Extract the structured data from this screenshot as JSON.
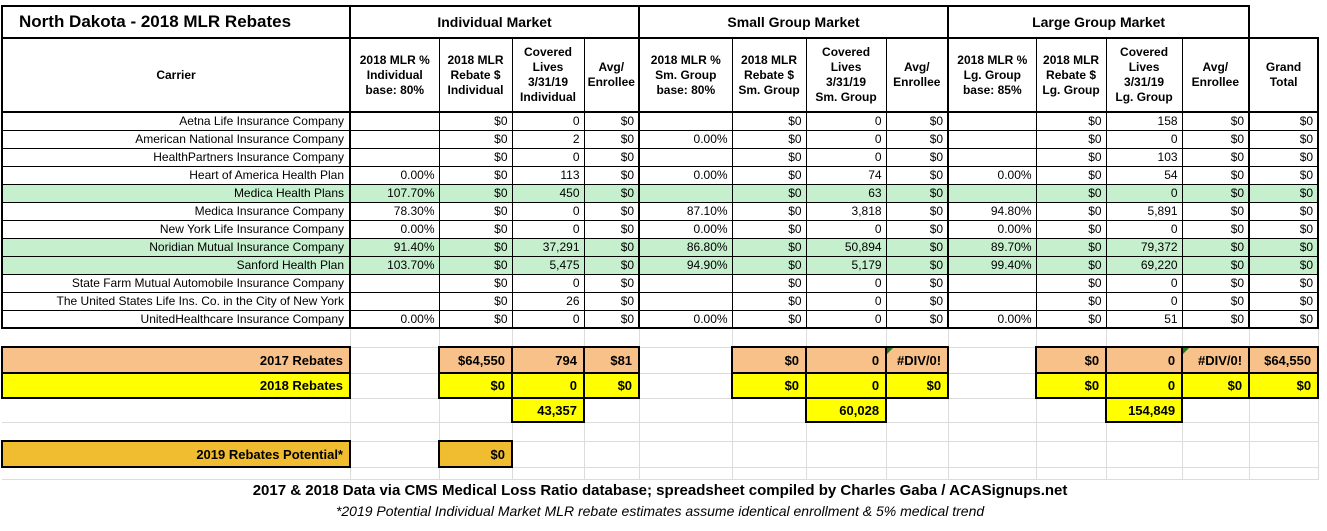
{
  "title": "North Dakota - 2018 MLR Rebates",
  "market_headers": [
    "Individual Market",
    "Small Group Market",
    "Large Group Market"
  ],
  "columns": [
    "Carrier",
    "2018 MLR %\nIndividual\nbase: 80%",
    "2018 MLR\nRebate $\nIndividual",
    "Covered\nLives\n3/31/19\nIndividual",
    "Avg/\nEnrollee",
    "2018 MLR %\nSm. Group\nbase: 80%",
    "2018 MLR\nRebate $\nSm. Group",
    "Covered\nLives\n3/31/19\nSm. Group",
    "Avg/\nEnrollee",
    "2018 MLR %\nLg. Group\nbase: 85%",
    "2018 MLR\nRebate $\nLg. Group",
    "Covered\nLives\n3/31/19\nLg. Group",
    "Avg/\nEnrollee",
    "Grand\nTotal"
  ],
  "rows": [
    {
      "carrier": "Aetna Life Insurance Company",
      "highlighted": false,
      "values": [
        "",
        "$0",
        "0",
        "$0",
        "",
        "$0",
        "0",
        "$0",
        "",
        "$0",
        "158",
        "$0",
        "$0"
      ]
    },
    {
      "carrier": "American National Insurance Company",
      "highlighted": false,
      "values": [
        "",
        "$0",
        "2",
        "$0",
        "0.00%",
        "$0",
        "0",
        "$0",
        "",
        "$0",
        "0",
        "$0",
        "$0"
      ]
    },
    {
      "carrier": "HealthPartners Insurance Company",
      "highlighted": false,
      "values": [
        "",
        "$0",
        "0",
        "$0",
        "",
        "$0",
        "0",
        "$0",
        "",
        "$0",
        "103",
        "$0",
        "$0"
      ]
    },
    {
      "carrier": "Heart of America Health Plan",
      "highlighted": false,
      "values": [
        "0.00%",
        "$0",
        "113",
        "$0",
        "0.00%",
        "$0",
        "74",
        "$0",
        "0.00%",
        "$0",
        "54",
        "$0",
        "$0"
      ]
    },
    {
      "carrier": "Medica Health Plans",
      "highlighted": true,
      "values": [
        "107.70%",
        "$0",
        "450",
        "$0",
        "",
        "$0",
        "63",
        "$0",
        "",
        "$0",
        "0",
        "$0",
        "$0"
      ]
    },
    {
      "carrier": "Medica Insurance Company",
      "highlighted": false,
      "values": [
        "78.30%",
        "$0",
        "0",
        "$0",
        "87.10%",
        "$0",
        "3,818",
        "$0",
        "94.80%",
        "$0",
        "5,891",
        "$0",
        "$0"
      ]
    },
    {
      "carrier": "New York Life Insurance Company",
      "highlighted": false,
      "values": [
        "0.00%",
        "$0",
        "0",
        "$0",
        "0.00%",
        "$0",
        "0",
        "$0",
        "0.00%",
        "$0",
        "0",
        "$0",
        "$0"
      ]
    },
    {
      "carrier": "Noridian Mutual Insurance Company",
      "highlighted": true,
      "values": [
        "91.40%",
        "$0",
        "37,291",
        "$0",
        "86.80%",
        "$0",
        "50,894",
        "$0",
        "89.70%",
        "$0",
        "79,372",
        "$0",
        "$0"
      ]
    },
    {
      "carrier": "Sanford Health Plan",
      "highlighted": true,
      "values": [
        "103.70%",
        "$0",
        "5,475",
        "$0",
        "94.90%",
        "$0",
        "5,179",
        "$0",
        "99.40%",
        "$0",
        "69,220",
        "$0",
        "$0"
      ]
    },
    {
      "carrier": "State Farm Mutual Automobile Insurance Company",
      "highlighted": false,
      "values": [
        "",
        "$0",
        "0",
        "$0",
        "",
        "$0",
        "0",
        "$0",
        "",
        "$0",
        "0",
        "$0",
        "$0"
      ]
    },
    {
      "carrier": "The United States Life Ins. Co. in the City of New York",
      "highlighted": false,
      "values": [
        "",
        "$0",
        "26",
        "$0",
        "",
        "$0",
        "0",
        "$0",
        "",
        "$0",
        "0",
        "$0",
        "$0"
      ]
    },
    {
      "carrier": "UnitedHealthcare Insurance Company",
      "highlighted": false,
      "values": [
        "0.00%",
        "$0",
        "0",
        "$0",
        "0.00%",
        "$0",
        "0",
        "$0",
        "0.00%",
        "$0",
        "51",
        "$0",
        "$0"
      ]
    }
  ],
  "summary": {
    "r2017": {
      "label": "2017 Rebates",
      "values": [
        "",
        "$64,550",
        "794",
        "$81",
        "",
        "$0",
        "0",
        "#DIV/0!",
        "",
        "$0",
        "0",
        "#DIV/0!",
        "$64,550"
      ],
      "error_cols": [
        7,
        11
      ]
    },
    "r2018": {
      "label": "2018 Rebates",
      "values": [
        "",
        "$0",
        "0",
        "$0",
        "",
        "$0",
        "0",
        "$0",
        "",
        "$0",
        "0",
        "$0",
        "$0"
      ],
      "error_cols": []
    },
    "lives_total": {
      "label": "",
      "values": [
        "",
        "",
        "43,357",
        "",
        "",
        "",
        "60,028",
        "",
        "",
        "",
        "154,849",
        "",
        ""
      ],
      "error_cols": []
    },
    "r2019": {
      "label": "2019 Rebates Potential*",
      "values": [
        "",
        "$0",
        "",
        "",
        "",
        "",
        "",
        "",
        "",
        "",
        "",
        "",
        ""
      ],
      "error_cols": []
    }
  },
  "footer": {
    "line1": "2017 & 2018 Data via CMS Medical Loss Ratio database; spreadsheet compiled by Charles Gaba / ACASignups.net",
    "line2": "*2019 Potential Individual Market MLR rebate estimates assume identical enrollment & 5% medical trend"
  },
  "colors": {
    "highlight_green": "#C6EFCE",
    "rebates_2017": "#F8C189",
    "rebates_2018": "#FFFF00",
    "rebates_2019": "#F0BC30",
    "error_indicator": "#1E7A1E"
  }
}
